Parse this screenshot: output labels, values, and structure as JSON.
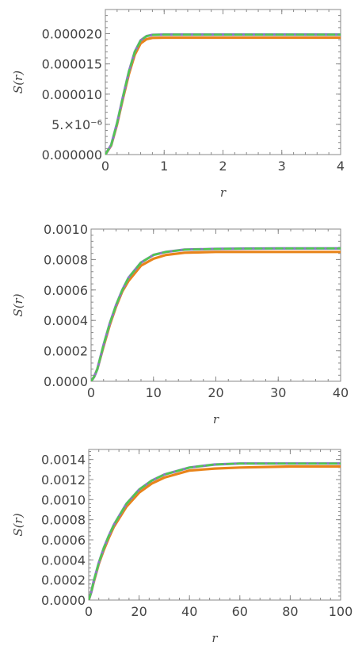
{
  "chart_data": [
    {
      "type": "line",
      "xlabel": "r",
      "ylabel": "S(r)",
      "xlim": [
        0,
        4
      ],
      "ylim": [
        0,
        2.4e-05
      ],
      "x_ticks": [
        0,
        1,
        2,
        3,
        4
      ],
      "x_tick_labels": [
        "0",
        "1",
        "2",
        "3",
        "4"
      ],
      "y_ticks": [
        0,
        5e-06,
        1e-05,
        1.5e-05,
        2e-05
      ],
      "y_tick_labels": [
        "0.000000",
        "5.×10⁻⁶",
        "0.000010",
        "0.000015",
        "0.000020"
      ],
      "x": [
        0,
        0.1,
        0.2,
        0.3,
        0.4,
        0.5,
        0.6,
        0.7,
        0.8,
        1.0,
        1.5,
        2,
        3,
        4
      ],
      "series": [
        {
          "color": "#e8841a",
          "style": "solid",
          "values": [
            0,
            1.5e-06,
            5e-06,
            9.3e-06,
            1.33e-05,
            1.65e-05,
            1.84e-05,
            1.91e-05,
            1.93e-05,
            1.935e-05,
            1.935e-05,
            1.935e-05,
            1.935e-05,
            1.935e-05
          ]
        },
        {
          "color": "#8b78c4",
          "style": "solid",
          "values": [
            0,
            1.6e-06,
            5.2e-06,
            9.6e-06,
            1.37e-05,
            1.7e-05,
            1.89e-05,
            1.96e-05,
            1.98e-05,
            1.985e-05,
            1.985e-05,
            1.985e-05,
            1.985e-05,
            1.985e-05
          ]
        },
        {
          "color": "#4fc94f",
          "style": "dashed",
          "values": [
            0,
            1.6e-06,
            5.2e-06,
            9.6e-06,
            1.37e-05,
            1.7e-05,
            1.89e-05,
            1.96e-05,
            1.98e-05,
            1.985e-05,
            1.985e-05,
            1.985e-05,
            1.985e-05,
            1.985e-05
          ]
        }
      ]
    },
    {
      "type": "line",
      "xlabel": "r",
      "ylabel": "S(r)",
      "xlim": [
        0,
        40
      ],
      "ylim": [
        0,
        0.001
      ],
      "x_ticks": [
        0,
        10,
        20,
        30,
        40
      ],
      "x_tick_labels": [
        "0",
        "10",
        "20",
        "30",
        "40"
      ],
      "y_ticks": [
        0,
        0.0002,
        0.0004,
        0.0006,
        0.0008,
        0.001
      ],
      "y_tick_labels": [
        "0.0000",
        "0.0002",
        "0.0004",
        "0.0006",
        "0.0008",
        "0.0010"
      ],
      "x": [
        0,
        0.5,
        1,
        2,
        3,
        4,
        5,
        6,
        8,
        10,
        12,
        15,
        20,
        25,
        30,
        40
      ],
      "series": [
        {
          "color": "#e8841a",
          "style": "solid",
          "values": [
            0,
            3e-05,
            8e-05,
            0.00023,
            0.00037,
            0.00049,
            0.00059,
            0.00066,
            0.00076,
            0.000805,
            0.00083,
            0.000845,
            0.00085,
            0.00085,
            0.00085,
            0.00085
          ]
        },
        {
          "color": "#8b78c4",
          "style": "solid",
          "values": [
            0,
            3e-05,
            8e-05,
            0.00024,
            0.00038,
            0.0005,
            0.0006,
            0.00068,
            0.00078,
            0.00083,
            0.00085,
            0.000865,
            0.00087,
            0.000872,
            0.000873,
            0.000873
          ]
        },
        {
          "color": "#4fc94f",
          "style": "dashed",
          "values": [
            0,
            3e-05,
            8e-05,
            0.00024,
            0.00038,
            0.0005,
            0.0006,
            0.00068,
            0.00078,
            0.00083,
            0.00085,
            0.000865,
            0.00087,
            0.000872,
            0.000873,
            0.000873
          ]
        }
      ]
    },
    {
      "type": "line",
      "xlabel": "r",
      "ylabel": "S(r)",
      "xlim": [
        0,
        100
      ],
      "ylim": [
        0,
        0.0015
      ],
      "x_ticks": [
        0,
        20,
        40,
        60,
        80,
        100
      ],
      "x_tick_labels": [
        "0",
        "20",
        "40",
        "60",
        "80",
        "100"
      ],
      "y_ticks": [
        0,
        0.0002,
        0.0004,
        0.0006,
        0.0008,
        0.001,
        0.0012,
        0.0014
      ],
      "y_tick_labels": [
        "0.0000",
        "0.0002",
        "0.0004",
        "0.0006",
        "0.0008",
        "0.0010",
        "0.0012",
        "0.0014"
      ],
      "x": [
        0,
        1,
        2,
        4,
        6,
        8,
        10,
        15,
        20,
        25,
        30,
        40,
        50,
        60,
        80,
        100
      ],
      "series": [
        {
          "color": "#e8841a",
          "style": "solid",
          "values": [
            0,
            8e-05,
            0.00018,
            0.00036,
            0.0005,
            0.00062,
            0.00073,
            0.00093,
            0.00107,
            0.00116,
            0.00122,
            0.00129,
            0.00131,
            0.00132,
            0.00133,
            0.00133
          ]
        },
        {
          "color": "#8b78c4",
          "style": "solid",
          "values": [
            0,
            8e-05,
            0.00019,
            0.00037,
            0.00052,
            0.00064,
            0.00075,
            0.00096,
            0.0011,
            0.00119,
            0.00125,
            0.00132,
            0.00135,
            0.00136,
            0.00136,
            0.00136
          ]
        },
        {
          "color": "#4fc94f",
          "style": "dashed",
          "values": [
            0,
            8e-05,
            0.00019,
            0.00037,
            0.00052,
            0.00064,
            0.00075,
            0.00096,
            0.0011,
            0.00119,
            0.00125,
            0.00132,
            0.00135,
            0.00136,
            0.00136,
            0.00136
          ]
        }
      ]
    }
  ]
}
